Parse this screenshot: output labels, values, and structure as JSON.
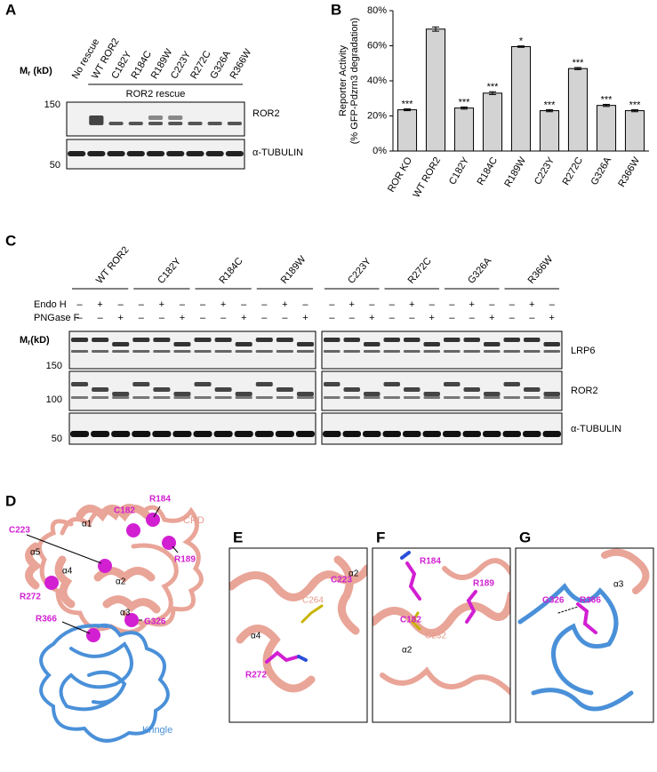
{
  "panel_a": {
    "label": "A",
    "lanes": [
      "No rescue",
      "WT ROR2",
      "C182Y",
      "R184C",
      "R189W",
      "C223Y",
      "R272C",
      "G326A",
      "R366W"
    ],
    "rescue_label": "ROR2 rescue",
    "mr": {
      "symbol": "M",
      "sub": "r",
      "unit": " (kD)"
    },
    "markers": [
      "150",
      "50"
    ],
    "blots": [
      "ROR2",
      "α-TUBULIN"
    ]
  },
  "chart_data": {
    "type": "bar",
    "panel_label": "B",
    "ylabel": [
      "Reporter Activity",
      "(% GFP-Pdzrn3 degradation)"
    ],
    "categories": [
      "ROR KO",
      "WT ROR2",
      "C182Y",
      "R184C",
      "R189W",
      "C223Y",
      "R272C",
      "G326A",
      "R366W"
    ],
    "values": [
      23.5,
      69.5,
      24.5,
      33,
      59.5,
      23,
      47,
      26,
      23
    ],
    "errors": [
      0.5,
      1.2,
      0.6,
      0.8,
      0.4,
      0.6,
      0.6,
      0.6,
      0.6
    ],
    "significance": [
      "***",
      null,
      "***",
      "***",
      "*",
      "***",
      "***",
      "***",
      "***"
    ],
    "color": "#d3d3d3",
    "ylim": [
      0,
      80
    ],
    "yticks": [
      {
        "value": 0,
        "label": "0%"
      },
      {
        "value": 20,
        "label": "20%"
      },
      {
        "value": 40,
        "label": "40%"
      },
      {
        "value": 60,
        "label": "60%"
      },
      {
        "value": 80,
        "label": "80%"
      }
    ]
  },
  "panel_c": {
    "label": "C",
    "groups": [
      "WT ROR2",
      "C182Y",
      "R184C",
      "R189W",
      "C223Y",
      "R272C",
      "G326A",
      "R366W"
    ],
    "treatments": [
      {
        "name": "Endo H",
        "signs": [
          "–",
          "+",
          "–"
        ]
      },
      {
        "name": "PNGase F",
        "signs": [
          "–",
          "–",
          "+"
        ]
      }
    ],
    "mr": {
      "symbol": "M",
      "sub": "r",
      "unit": "(kD)"
    },
    "markers": [
      "150",
      "100",
      "50"
    ],
    "blots": [
      "LRP6",
      "ROR2",
      "α-TUBULIN"
    ]
  },
  "panel_d": {
    "label": "D",
    "residues": [
      "C182",
      "R184",
      "C223",
      "R189",
      "R272",
      "G326",
      "R366"
    ],
    "helices": [
      "α1",
      "α2",
      "α3",
      "α4",
      "α5"
    ],
    "domains": [
      "CRD",
      "Kringle"
    ]
  },
  "panel_e": {
    "label": "E",
    "texts": [
      "C223",
      "α2",
      "C264",
      "α4",
      "R272"
    ]
  },
  "panel_f": {
    "label": "F",
    "texts": [
      "R184",
      "R189",
      "C182",
      "C232",
      "α2"
    ]
  },
  "panel_g": {
    "label": "G",
    "texts": [
      "G326",
      "R366",
      "α3"
    ]
  }
}
